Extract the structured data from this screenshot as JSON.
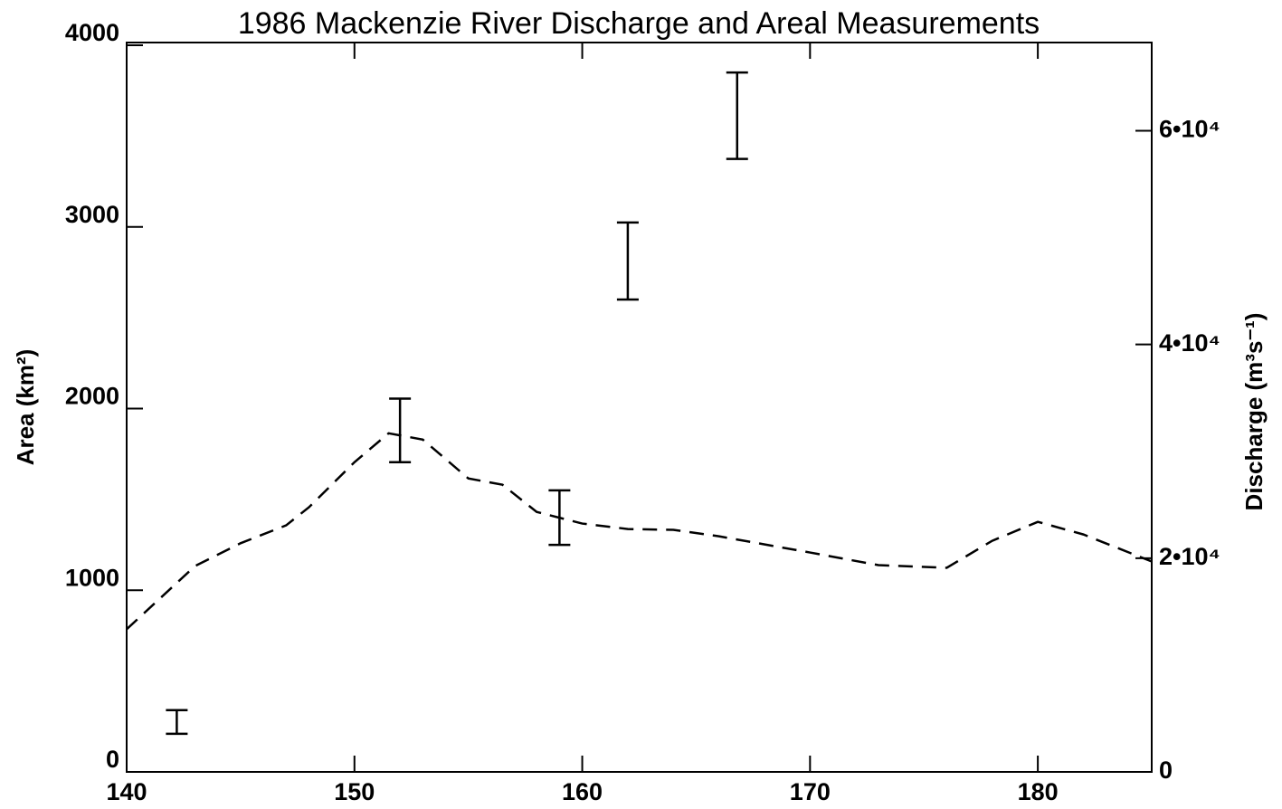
{
  "chart_data": {
    "type": "line",
    "title": "1986 Mackenzie River Discharge and Areal Measurements",
    "ylabel": "Area (km²)",
    "y2label": "Discharge (m³s⁻¹)",
    "xlim": [
      140,
      185
    ],
    "xticks": [
      140,
      150,
      160,
      170,
      180
    ],
    "ylim": [
      0,
      4000
    ],
    "yticks": [
      0,
      1000,
      2000,
      3000,
      4000
    ],
    "y2lim": [
      0,
      68000
    ],
    "y2ticks": [
      0,
      {
        "value": 20000,
        "label": "2•10⁴"
      },
      {
        "value": 40000,
        "label": "4•10⁴"
      },
      {
        "value": 60000,
        "label": "6•10⁴"
      }
    ],
    "series": [
      {
        "style": "errorbar",
        "color": "#000000",
        "x": [
          142.2,
          152,
          159,
          162,
          166.8
        ],
        "values": [
          275,
          1880,
          1400,
          2812,
          3612
        ],
        "errors": [
          65,
          175,
          150,
          212,
          238
        ]
      },
      {
        "style": "dashed",
        "axis": "y2",
        "color": "#000000",
        "x": [
          140,
          143,
          145,
          147,
          148,
          150,
          151.5,
          153,
          155,
          156.5,
          158,
          160,
          162,
          164,
          166,
          170,
          173,
          176,
          178,
          180,
          182,
          185
        ],
        "values": [
          13350,
          19260,
          21400,
          23070,
          24760,
          28980,
          31690,
          31100,
          27460,
          26870,
          24330,
          23240,
          22730,
          22650,
          22050,
          20530,
          19350,
          19100,
          21630,
          23400,
          22220,
          19690
        ]
      }
    ]
  }
}
